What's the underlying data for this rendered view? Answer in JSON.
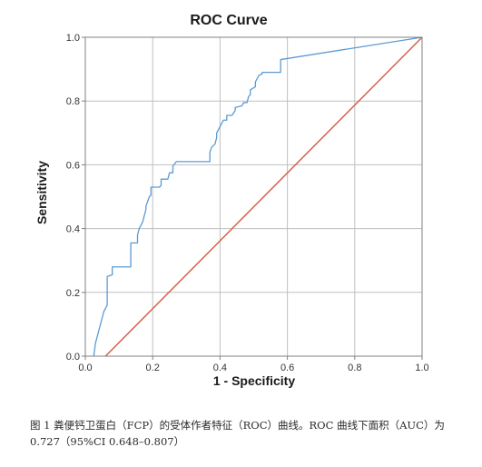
{
  "chart_data": {
    "type": "line",
    "title": "ROC Curve",
    "xlabel": "1 - Specificity",
    "ylabel": "Sensitivity",
    "xlim": [
      0.0,
      1.0
    ],
    "ylim": [
      0.0,
      1.0
    ],
    "xticks": [
      "0.0",
      "0.2",
      "0.4",
      "0.6",
      "0.8",
      "1.0"
    ],
    "yticks": [
      "0.0",
      "0.2",
      "0.4",
      "0.6",
      "0.8",
      "1.0"
    ],
    "grid": true,
    "legend": false,
    "series": [
      {
        "color": "#5b9bd5",
        "x": [
          0.025,
          0.03,
          0.04,
          0.05,
          0.055,
          0.065,
          0.065,
          0.08,
          0.08,
          0.135,
          0.135,
          0.155,
          0.155,
          0.16,
          0.17,
          0.175,
          0.18,
          0.18,
          0.19,
          0.195,
          0.195,
          0.22,
          0.225,
          0.225,
          0.245,
          0.25,
          0.26,
          0.26,
          0.27,
          0.3,
          0.35,
          0.37,
          0.37,
          0.375,
          0.385,
          0.39,
          0.39,
          0.4,
          0.405,
          0.41,
          0.42,
          0.42,
          0.435,
          0.445,
          0.445,
          0.465,
          0.47,
          0.48,
          0.485,
          0.49,
          0.49,
          0.505,
          0.505,
          0.515,
          0.525,
          0.525,
          0.54,
          0.55,
          0.56,
          0.58,
          0.58,
          1.0
        ],
        "y": [
          0.0,
          0.04,
          0.08,
          0.12,
          0.14,
          0.16,
          0.25,
          0.255,
          0.28,
          0.28,
          0.355,
          0.355,
          0.38,
          0.4,
          0.42,
          0.44,
          0.46,
          0.47,
          0.5,
          0.505,
          0.53,
          0.53,
          0.535,
          0.555,
          0.555,
          0.575,
          0.575,
          0.595,
          0.61,
          0.61,
          0.61,
          0.61,
          0.64,
          0.655,
          0.665,
          0.685,
          0.7,
          0.72,
          0.73,
          0.74,
          0.74,
          0.755,
          0.755,
          0.77,
          0.78,
          0.785,
          0.795,
          0.795,
          0.815,
          0.82,
          0.835,
          0.845,
          0.86,
          0.88,
          0.885,
          0.89,
          0.89,
          0.89,
          0.89,
          0.89,
          0.93,
          1.0
        ]
      },
      {
        "color": "#d6604d",
        "x": [
          0.06,
          1.0
        ],
        "y": [
          0.0,
          1.0
        ]
      }
    ]
  },
  "caption": {
    "text": "图 1 粪便钙卫蛋白（FCP）的受体作者特征（ROC）曲线。ROC 曲线下面积（AUC）为 0.727（95%CI 0.648–0.807）"
  }
}
